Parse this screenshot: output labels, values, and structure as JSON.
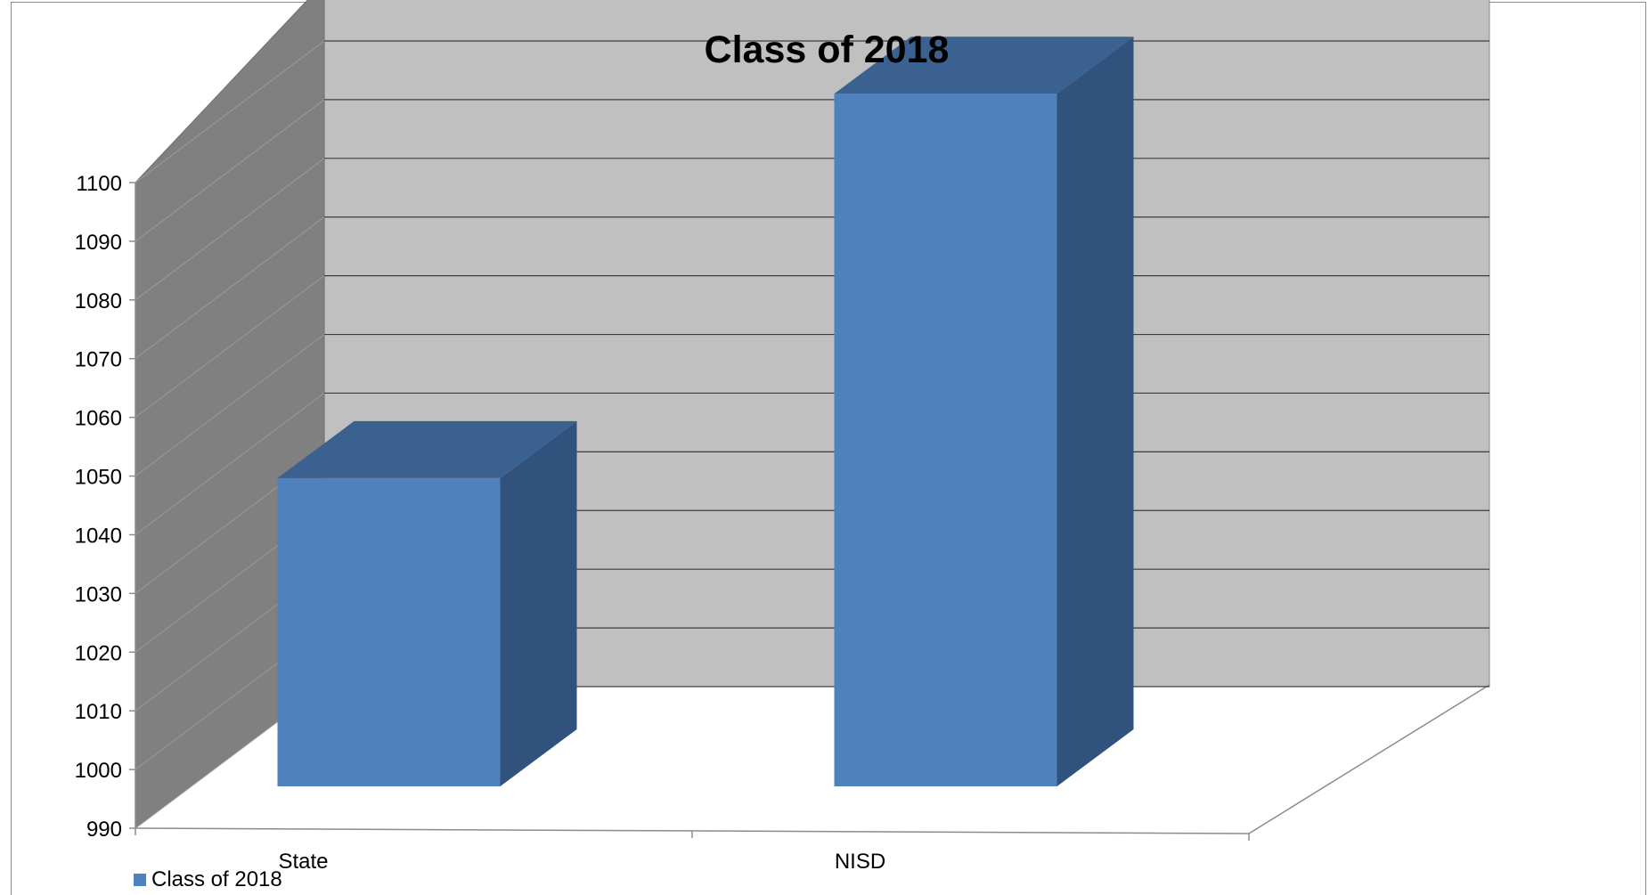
{
  "chart_data": {
    "type": "bar",
    "title": "Class of 2018",
    "categories": [
      "State",
      "NISD"
    ],
    "series": [
      {
        "name": "Class of 2018",
        "values": [
          1037.5,
          1103
        ]
      }
    ],
    "ylim": [
      990,
      1100
    ],
    "yticks": [
      990,
      1000,
      1010,
      1020,
      1030,
      1040,
      1050,
      1060,
      1070,
      1080,
      1090,
      1100
    ],
    "xlabel": "",
    "ylabel": "",
    "grid": true,
    "legend_position": "bottom-left",
    "style": "3d-column"
  },
  "colors": {
    "bar_front": "#4f81bd",
    "bar_top": "#3b6190",
    "bar_side": "#31527c",
    "back_wall": "#c0c0c0",
    "side_wall": "#808080",
    "gridline": "#3c3c3c"
  }
}
